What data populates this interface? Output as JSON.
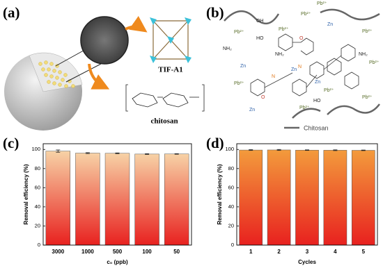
{
  "figure": {
    "panel_labels": [
      "(a)",
      "(b)",
      "(c)",
      "(d)"
    ],
    "panel_a": {
      "tif": "TIF-A1",
      "chitosan": "chitosan"
    },
    "panel_b": {
      "legend": "Chitosan",
      "labels": [
        "Pb²⁺",
        "Pb²⁺",
        "Pb²⁺",
        "Pb²⁺",
        "Pb²⁺",
        "Pb²⁺",
        "Pb²⁺",
        "Pb²⁺",
        "Pb²⁺",
        "Pb²⁺",
        "Zn",
        "Zn",
        "Zn",
        "Zn",
        "Zn",
        "NH₂",
        "NH₂",
        "NH₂",
        "OH",
        "HO",
        "HO",
        "N",
        "N",
        "O",
        "O"
      ]
    }
  },
  "chart_data": [
    {
      "type": "bar",
      "xlabel": "c₀ (ppb)",
      "ylabel": "Removal efficiency (%)",
      "categories": [
        "3000",
        "1000",
        "500",
        "100",
        "50"
      ],
      "values": [
        98.3,
        96.2,
        96.0,
        95.2,
        95.3
      ],
      "errors": [
        1.2,
        0.5,
        0.4,
        0.4,
        0.3
      ],
      "colors": [
        "#f7d2a6",
        "#e8211f"
      ],
      "ylim": [
        0,
        106
      ],
      "yticks": [
        0,
        20,
        40,
        60,
        80,
        100
      ]
    },
    {
      "type": "bar",
      "xlabel": "Cycles",
      "ylabel": "Removal efficiency (%)",
      "categories": [
        "1",
        "2",
        "3",
        "4",
        "5"
      ],
      "values": [
        99.4,
        99.5,
        99.3,
        99.2,
        99.1
      ],
      "errors": [
        0.4,
        0.5,
        0.3,
        0.4,
        0.3
      ],
      "colors": [
        "#f39b3c",
        "#e8211f"
      ],
      "ylim": [
        0,
        106
      ],
      "yticks": [
        0,
        20,
        40,
        60,
        80,
        100
      ]
    }
  ]
}
